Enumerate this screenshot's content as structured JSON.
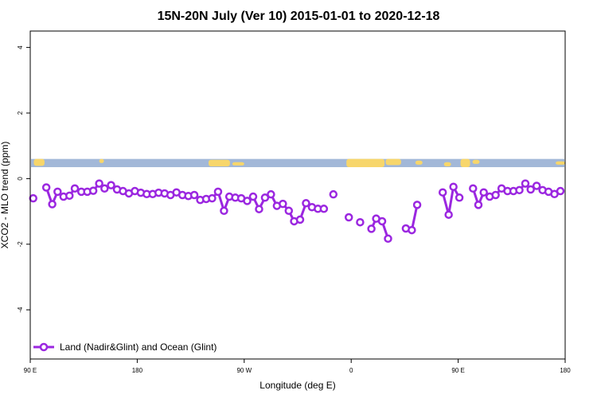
{
  "chart_data": {
    "type": "line",
    "title": "15N-20N July (Ver 10)   2015-01-01 to 2020-12-18",
    "xlabel": "Longitude (deg E)",
    "ylabel": "XCO2 - MLO trend (ppm)",
    "x_range_shifted": [
      0,
      360
    ],
    "x_ticks": [
      {
        "value": 0,
        "label": "90 E"
      },
      {
        "value": 90,
        "label": "180"
      },
      {
        "value": 180,
        "label": "90 W"
      },
      {
        "value": 270,
        "label": "0"
      },
      {
        "value": 360,
        "label": "90 E"
      },
      {
        "value": 450,
        "label": "180"
      }
    ],
    "y_ticks": [
      4,
      2,
      0,
      -2,
      -4
    ],
    "ylim": [
      -5.5,
      4.5
    ],
    "xlim": [
      0,
      450
    ],
    "grid": false,
    "legend_position": "bottom-left",
    "colors": {
      "series": "#9b27e0",
      "ocean": "#a2b8d8",
      "land": "#f7d66b",
      "axis": "#000000"
    },
    "map_strip": {
      "y_bottom": 0.35,
      "y_top": 0.6
    },
    "series": [
      {
        "name": "Land (Nadir&Glint) and Ocean (Glint)",
        "segments": [
          [
            [
              2.5,
              -0.6
            ]
          ],
          [
            [
              13.5,
              -0.27
            ],
            [
              18.5,
              -0.78
            ],
            [
              23.0,
              -0.4
            ],
            [
              28.0,
              -0.55
            ],
            [
              33.0,
              -0.52
            ],
            [
              37.5,
              -0.3
            ],
            [
              43.0,
              -0.4
            ],
            [
              48.0,
              -0.4
            ],
            [
              53.0,
              -0.37
            ],
            [
              58.0,
              -0.15
            ],
            [
              62.5,
              -0.3
            ],
            [
              68.0,
              -0.2
            ],
            [
              73.0,
              -0.33
            ],
            [
              78.0,
              -0.38
            ],
            [
              83.0,
              -0.45
            ],
            [
              88.0,
              -0.38
            ],
            [
              93.0,
              -0.43
            ],
            [
              98.0,
              -0.47
            ],
            [
              103.0,
              -0.47
            ],
            [
              108.0,
              -0.43
            ],
            [
              113.0,
              -0.45
            ],
            [
              118.0,
              -0.5
            ],
            [
              123.0,
              -0.42
            ],
            [
              128.0,
              -0.5
            ],
            [
              133.0,
              -0.53
            ],
            [
              138.0,
              -0.5
            ],
            [
              143.0,
              -0.65
            ],
            [
              148.0,
              -0.62
            ],
            [
              153.0,
              -0.6
            ],
            [
              158.0,
              -0.4
            ],
            [
              163.0,
              -0.98
            ],
            [
              167.5,
              -0.55
            ],
            [
              172.5,
              -0.58
            ],
            [
              177.5,
              -0.6
            ],
            [
              182.5,
              -0.68
            ],
            [
              187.5,
              -0.55
            ],
            [
              192.5,
              -0.93
            ],
            [
              197.5,
              -0.58
            ],
            [
              202.5,
              -0.48
            ],
            [
              207.5,
              -0.83
            ],
            [
              212.5,
              -0.77
            ],
            [
              217.5,
              -0.98
            ],
            [
              222.0,
              -1.3
            ],
            [
              227.0,
              -1.25
            ],
            [
              232.0,
              -0.75
            ],
            [
              237.0,
              -0.87
            ],
            [
              242.0,
              -0.92
            ],
            [
              247.0,
              -0.92
            ]
          ],
          [
            [
              255.0,
              -0.48
            ]
          ],
          [
            [
              268.0,
              -1.18
            ]
          ],
          [
            [
              277.5,
              -1.33
            ]
          ],
          [
            [
              287.0,
              -1.53
            ],
            [
              291.0,
              -1.22
            ],
            [
              296.0,
              -1.3
            ],
            [
              301.0,
              -1.83
            ]
          ],
          [
            [
              316.0,
              -1.52
            ],
            [
              321.0,
              -1.57
            ],
            [
              325.5,
              -0.8
            ]
          ],
          [
            [
              347.0,
              -0.42
            ],
            [
              352.0,
              -1.1
            ],
            [
              356.0,
              -0.25
            ],
            [
              361.0,
              -0.58
            ]
          ],
          [
            [
              372.5,
              -0.3
            ],
            [
              377.0,
              -0.8
            ],
            [
              381.5,
              -0.42
            ],
            [
              386.5,
              -0.55
            ],
            [
              391.5,
              -0.5
            ],
            [
              396.5,
              -0.3
            ],
            [
              401.5,
              -0.38
            ],
            [
              406.5,
              -0.38
            ],
            [
              411.5,
              -0.35
            ],
            [
              416.5,
              -0.15
            ],
            [
              421.0,
              -0.33
            ],
            [
              426.0,
              -0.22
            ],
            [
              431.0,
              -0.35
            ],
            [
              436.0,
              -0.4
            ],
            [
              441.0,
              -0.47
            ],
            [
              446.0,
              -0.38
            ]
          ]
        ]
      }
    ]
  }
}
